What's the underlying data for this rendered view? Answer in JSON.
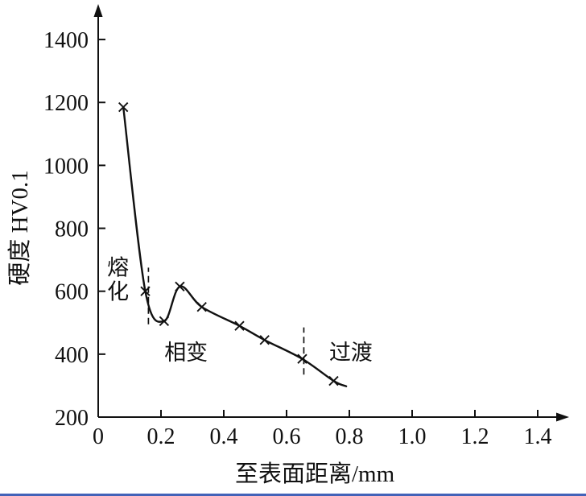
{
  "figure": {
    "description": "Hardness versus distance-from-surface curve with melted, phase-change and transition zones",
    "bottom_rule_color": "#4262b8",
    "line_color": "#111111"
  },
  "chart_data": {
    "type": "line",
    "title": "",
    "xlabel": "至表面距离/mm",
    "ylabel": "硬度 HV0.1",
    "marker": "x",
    "grid": false,
    "legend": "none",
    "xlim": [
      0,
      1.5
    ],
    "ylim": [
      200,
      1500
    ],
    "xticks": [
      0,
      0.2,
      0.4,
      0.6,
      0.8,
      1.0,
      1.2,
      1.4
    ],
    "xtick_labels": [
      "0",
      "0.2",
      "0.4",
      "0.6",
      "0.8",
      "1.0",
      "1.2",
      "1.4"
    ],
    "yticks": [
      200,
      400,
      600,
      800,
      1000,
      1200,
      1400
    ],
    "ytick_labels": [
      "200",
      "400",
      "600",
      "800",
      "1000",
      "1200",
      "1400"
    ],
    "x": [
      0.08,
      0.15,
      0.21,
      0.26,
      0.33,
      0.45,
      0.53,
      0.65,
      0.75
    ],
    "y": [
      1185,
      600,
      505,
      615,
      550,
      490,
      445,
      385,
      315
    ],
    "curve_tail": {
      "x": 0.79,
      "y": 298
    },
    "annotations": [
      {
        "text": "熔化",
        "x": 0.063,
        "y": 675,
        "vertical": true
      },
      {
        "text": "相变",
        "x": 0.28,
        "y": 405,
        "vertical": false
      },
      {
        "text": "过渡",
        "x": 0.805,
        "y": 405,
        "vertical": false
      }
    ],
    "dashed_guides": [
      {
        "x": 0.16,
        "y_from": 495,
        "y_to": 675
      },
      {
        "x": 0.655,
        "y_from": 335,
        "y_to": 485
      }
    ]
  }
}
